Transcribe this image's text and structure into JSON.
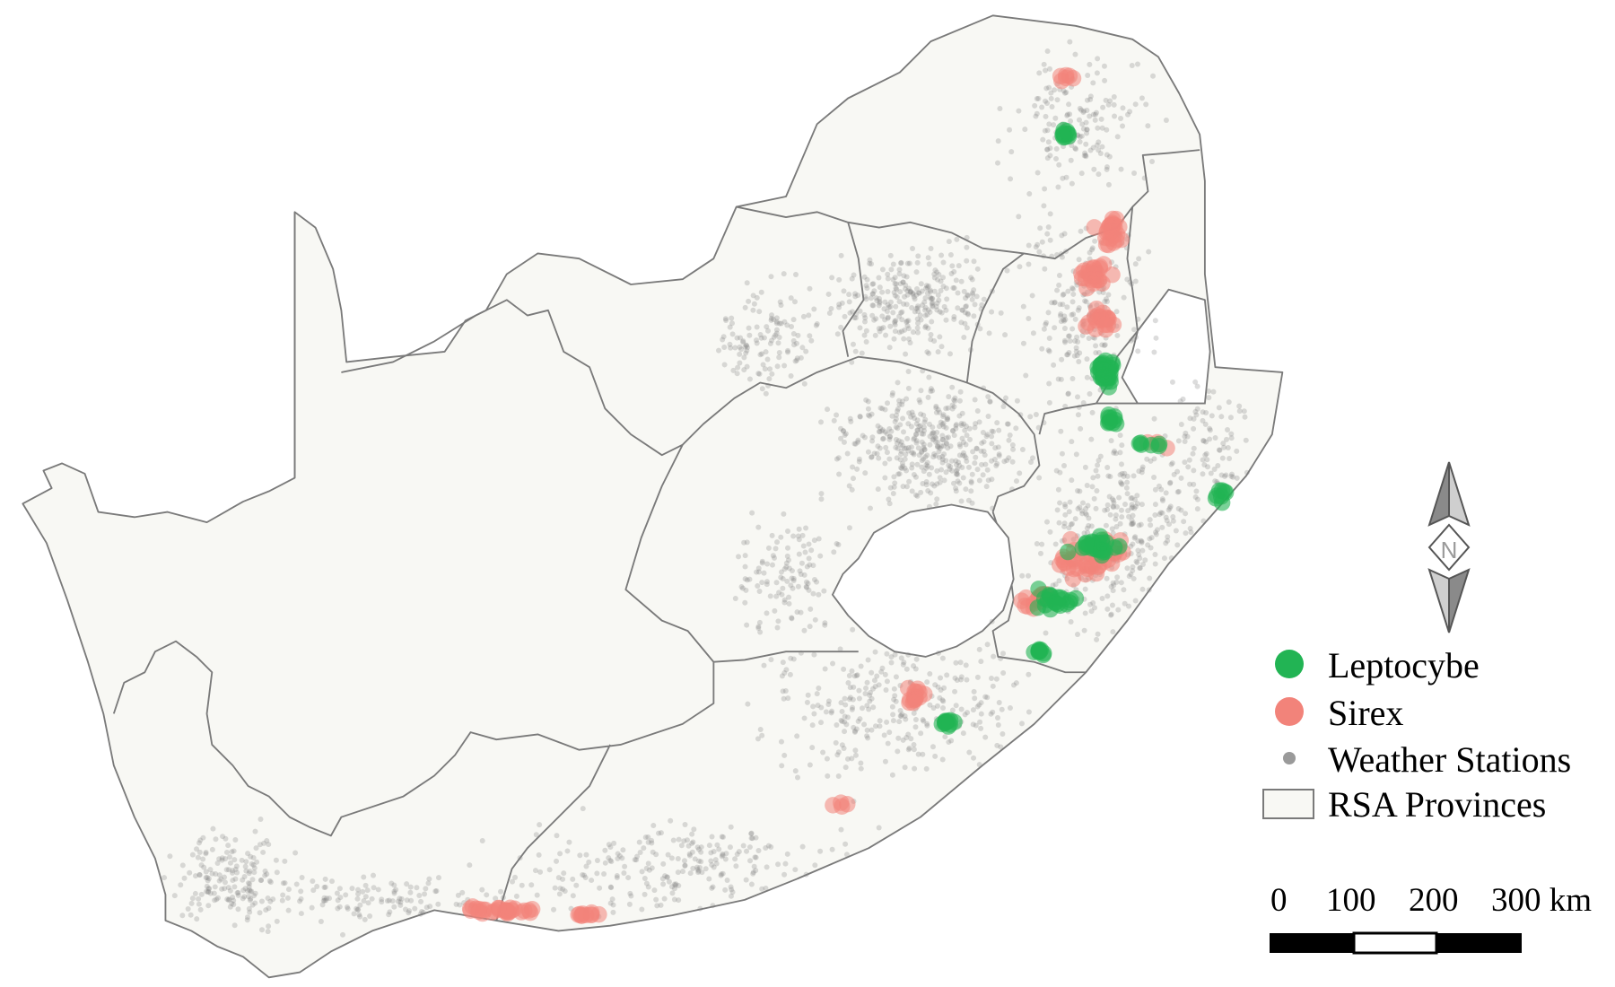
{
  "legend": {
    "items": [
      {
        "key": "leptocybe",
        "label": "Leptocybe",
        "color": "#22b454"
      },
      {
        "key": "sirex",
        "label": "Sirex",
        "color": "#f2837a"
      },
      {
        "key": "stations",
        "label": "Weather Stations",
        "color": "#9a9a9a"
      },
      {
        "key": "provinces",
        "label": "RSA Provinces",
        "color": "#f8f8f4"
      }
    ]
  },
  "scale_bar": {
    "tick_labels": [
      "0",
      "100",
      "200",
      "300 km"
    ]
  },
  "north_arrow": {
    "label": "N"
  },
  "colors": {
    "province_fill": "#f8f8f4",
    "boundary": "#7a7a7a",
    "leptocybe": "#22b454",
    "sirex": "#f2837a",
    "stations": "#808080"
  }
}
